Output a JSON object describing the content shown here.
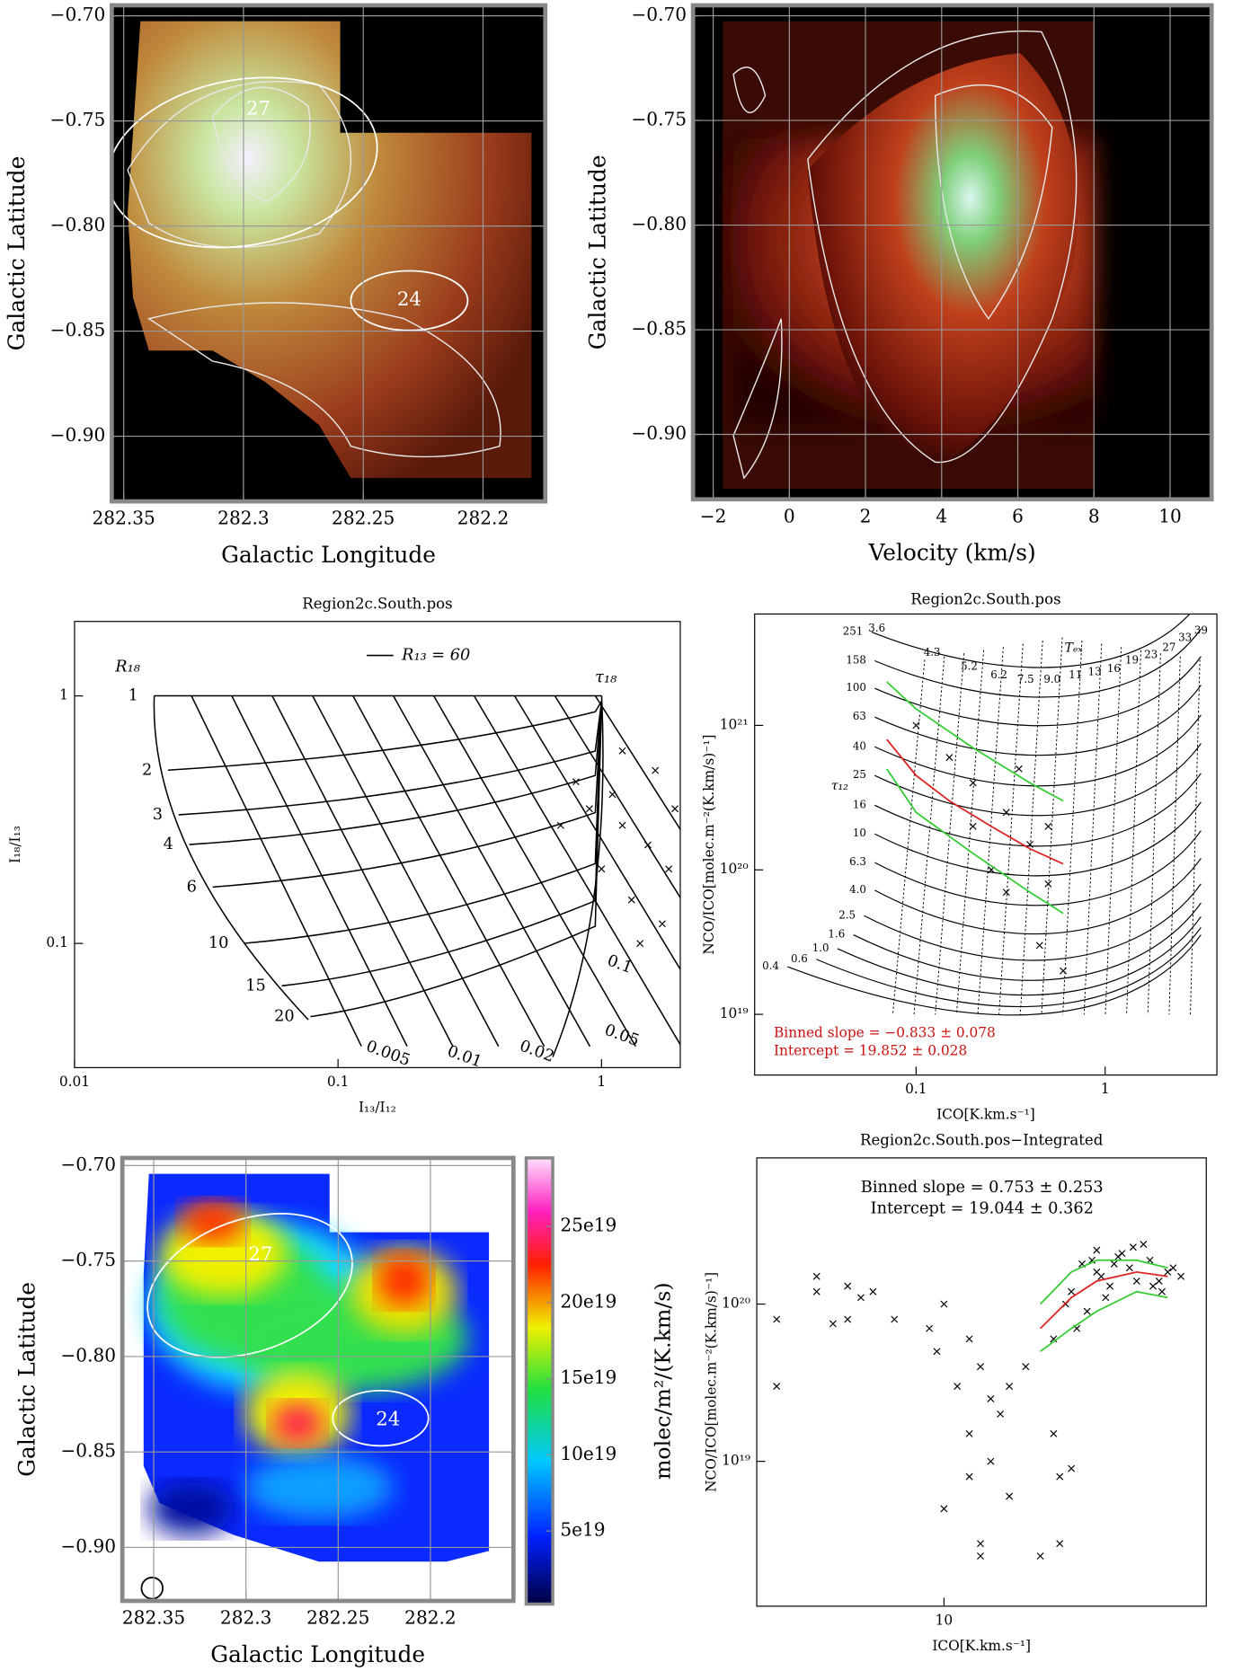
{
  "chart_data": [
    {
      "type": "image",
      "xlabel": "Galactic Longitude",
      "ylabel": "Galactic Latitude",
      "xlim": [
        282.355,
        282.174
      ],
      "ylim": [
        -0.931,
        -0.695
      ],
      "xticks": [
        282.35,
        282.3,
        282.25,
        282.2
      ],
      "yticks": [
        {
          "value": -0.7,
          "label": "−0.70"
        },
        {
          "value": -0.75,
          "label": "−0.75"
        },
        {
          "value": -0.8,
          "label": "−0.80"
        },
        {
          "value": -0.85,
          "label": "−0.85"
        },
        {
          "value": -0.9,
          "label": "−0.90"
        }
      ],
      "grid": true,
      "annotations": [
        "27",
        "24"
      ]
    },
    {
      "type": "image",
      "xlabel": "Velocity (km/s)",
      "ylabel": "Galactic Latitude",
      "xlim": [
        -2.53,
        11.09
      ],
      "ylim": [
        -0.931,
        -0.695
      ],
      "xticks": [
        {
          "value": -2,
          "label": "−2"
        },
        0,
        2,
        4,
        6,
        8,
        10
      ],
      "yticks": [
        {
          "value": -0.7,
          "label": "−0.70"
        },
        {
          "value": -0.75,
          "label": "−0.75"
        },
        {
          "value": -0.8,
          "label": "−0.80"
        },
        {
          "value": -0.85,
          "label": "−0.85"
        },
        {
          "value": -0.9,
          "label": "−0.90"
        }
      ],
      "grid": true
    },
    {
      "type": "scatter",
      "title": "Region2c.South.pos",
      "xlabel": "I₁₃/I₁₂",
      "ylabel": "I₁₈/I₁₃",
      "log_x": true,
      "log_y": true,
      "xlim": [
        0.01,
        1.99
      ],
      "ylim": [
        0.0315,
        2.0
      ],
      "xticks": [
        0.01,
        0.1,
        1
      ],
      "yticks": [
        0.1,
        1
      ],
      "legend_text": "R₁₃  =  60",
      "r_label": "R₁₈",
      "tau_label": "τ₁₈",
      "r_values": [
        "1",
        "2",
        "3",
        "4",
        "6",
        "10",
        "15",
        "20"
      ],
      "tau_values": [
        "0.005",
        "0.01",
        "0.02",
        "0.05",
        "0.1"
      ],
      "series": [
        {
          "color": "#000000",
          "x": [
            1.2,
            1.5,
            1.1,
            1.8,
            1.3,
            0.9,
            1.6,
            1.4,
            0.8,
            1.7,
            1.2,
            1.9,
            1.0,
            0.7
          ],
          "values": [
            0.3,
            0.25,
            0.4,
            0.2,
            0.15,
            0.35,
            0.5,
            0.1,
            0.45,
            0.12,
            0.6,
            0.35,
            0.2,
            0.3
          ]
        }
      ]
    },
    {
      "type": "scatter",
      "title": "Region2c.South.pos",
      "xlabel": "ICO[K.km.s⁻¹]",
      "ylabel": "NCO/ICO[molec.m⁻²(K.km/s)⁻¹]",
      "log_x": true,
      "log_y": true,
      "xlim": [
        0.014,
        3.9
      ],
      "ylim": [
        3.8e+18,
        5.9e+21
      ],
      "xticks": [
        0.1,
        1
      ],
      "yticks": [
        {
          "value": 1e+19,
          "label": "10¹⁹"
        },
        {
          "value": 1e+20,
          "label": "10²⁰"
        },
        {
          "value": 1e+21,
          "label": "10²¹"
        }
      ],
      "tex_label": "Tₑₓ",
      "tau_label": "τ₁₂",
      "tex_values": [
        "3.6",
        "4.3",
        "5.2",
        "6.2",
        "7.5",
        "9.0",
        "11",
        "13",
        "16",
        "19",
        "23",
        "27",
        "33",
        "39"
      ],
      "tau_values": [
        "251",
        "158",
        "100",
        "63",
        "40",
        "25",
        "16",
        "10",
        "6.3",
        "4.0",
        "2.5",
        "1.6",
        "1.0",
        "0.6",
        "0.4"
      ],
      "annotations": [
        "Binned slope = −0.833 ± 0.078",
        "Intercept = 19.852 ± 0.028"
      ],
      "annotation_color": "#cc1111",
      "series": [
        {
          "color": "#000000",
          "x": [
            0.2,
            0.3,
            0.15,
            0.4,
            0.25,
            0.5,
            0.1,
            0.35,
            0.3,
            0.5,
            0.2,
            0.45,
            0.6
          ],
          "values": [
            4e+20,
            2.5e+20,
            6e+20,
            1.5e+20,
            1e+20,
            8e+19,
            1e+21,
            5e+20,
            7e+19,
            2e+20,
            2e+20,
            3e+19,
            2e+19
          ]
        },
        {
          "color": "#dd2222",
          "x": [
            0.07,
            0.1,
            0.15,
            0.25,
            0.4,
            0.6
          ],
          "values": [
            8e+20,
            4.5e+20,
            3e+20,
            2e+20,
            1.4e+20,
            1.1e+20
          ]
        },
        {
          "color": "#33cc33",
          "x": [
            0.07,
            0.1,
            0.2,
            0.4,
            0.6
          ],
          "values": [
            2e+21,
            1.3e+21,
            7e+20,
            4e+20,
            3e+20
          ]
        },
        {
          "color": "#33cc33",
          "x": [
            0.07,
            0.1,
            0.2,
            0.4,
            0.6
          ],
          "values": [
            5e+20,
            2.5e+20,
            1.3e+20,
            7e+19,
            5e+19
          ]
        }
      ]
    },
    {
      "type": "image",
      "xlabel": "Galactic Longitude",
      "ylabel": "Galactic Latitude",
      "xlim": [
        282.367,
        282.155
      ],
      "ylim": [
        -0.928,
        -0.696
      ],
      "xticks": [
        282.35,
        282.3,
        282.25,
        282.2
      ],
      "yticks": [
        {
          "value": -0.7,
          "label": "−0.70"
        },
        {
          "value": -0.75,
          "label": "−0.75"
        },
        {
          "value": -0.8,
          "label": "−0.80"
        },
        {
          "value": -0.85,
          "label": "−0.85"
        },
        {
          "value": -0.9,
          "label": "−0.90"
        }
      ],
      "grid": true,
      "annotations": [
        "27",
        "24"
      ],
      "colorbar": {
        "label": "molec/m²/(K.km/s)",
        "lim": [
          2e+18,
          2.95e+20
        ],
        "ticks": [
          {
            "value": 5e+19,
            "label": "5e19"
          },
          {
            "value": 1e+20,
            "label": "10e19"
          },
          {
            "value": 1.5e+20,
            "label": "15e19"
          },
          {
            "value": 2e+20,
            "label": "20e19"
          },
          {
            "value": 2.5e+20,
            "label": "25e19"
          }
        ]
      }
    },
    {
      "type": "scatter",
      "title": "Region2c.South.pos−Integrated",
      "xlabel": "ICO[K.km.s⁻¹]",
      "ylabel": "NCO/ICO[molec.m⁻²(K.km/s)⁻¹]",
      "log_x": true,
      "log_y": true,
      "xlim": [
        2.6,
        66
      ],
      "ylim": [
        1.2e+18,
        8.5e+20
      ],
      "xticks": [
        10
      ],
      "yticks": [
        {
          "value": 1e+19,
          "label": "10¹⁹"
        },
        {
          "value": 1e+20,
          "label": "10²⁰"
        }
      ],
      "annotations": [
        "Binned slope = 0.753 ± 0.253",
        "Intercept = 19.044 ± 0.362"
      ],
      "annotation_color": "#000000",
      "series": [
        {
          "color": "#000000",
          "x": [
            4,
            3,
            3,
            4,
            5,
            5.5,
            4.5,
            5,
            6,
            7,
            9,
            9.5,
            10,
            12,
            11,
            13,
            14,
            15,
            12,
            14,
            10,
            13,
            13,
            16,
            18,
            22,
            23,
            25,
            20,
            23,
            12,
            16,
            25,
            30,
            35,
            40,
            45,
            28,
            32,
            38,
            50,
            55,
            22,
            30,
            42,
            27,
            33,
            36,
            44,
            48,
            26,
            31,
            39,
            24,
            29,
            47,
            52,
            34
          ],
          "values": [
            1.5e+20,
            8e+19,
            3e+19,
            1.2e+20,
            1.3e+20,
            1.1e+20,
            7.5e+19,
            8e+19,
            1.2e+20,
            8e+19,
            7e+19,
            5e+19,
            1e+20,
            6e+19,
            3e+19,
            4e+19,
            2.5e+19,
            2e+19,
            1.5e+19,
            1e+19,
            5e+18,
            3e+18,
            2.5e+18,
            3e+19,
            4e+19,
            1.5e+19,
            8e+18,
            9e+18,
            2.5e+18,
            3e+18,
            8e+18,
            6e+18,
            1.2e+20,
            1.6e+20,
            2e+20,
            1.4e+20,
            1.3e+20,
            9e+19,
            1.1e+20,
            1.7e+20,
            1.6e+20,
            1.5e+20,
            6e+19,
            2.2e+20,
            2.4e+20,
            1.8e+20,
            1.3e+20,
            2.1e+20,
            1.9e+20,
            1.2e+20,
            7e+19,
            1.5e+20,
            2.3e+20,
            1e+20,
            1.9e+20,
            1.4e+20,
            1.7e+20,
            1.8e+20
          ]
        },
        {
          "color": "#dd2222",
          "x": [
            20,
            25,
            30,
            40,
            50
          ],
          "values": [
            7e+19,
            1.1e+20,
            1.4e+20,
            1.6e+20,
            1.5e+20
          ]
        },
        {
          "color": "#33cc33",
          "x": [
            20,
            25,
            30,
            40,
            50
          ],
          "values": [
            1e+20,
            1.6e+20,
            1.9e+20,
            1.9e+20,
            1.7e+20
          ]
        },
        {
          "color": "#33cc33",
          "x": [
            20,
            25,
            30,
            40,
            50
          ],
          "values": [
            5e+19,
            7e+19,
            9e+19,
            1.2e+20,
            1.1e+20
          ]
        }
      ]
    }
  ]
}
